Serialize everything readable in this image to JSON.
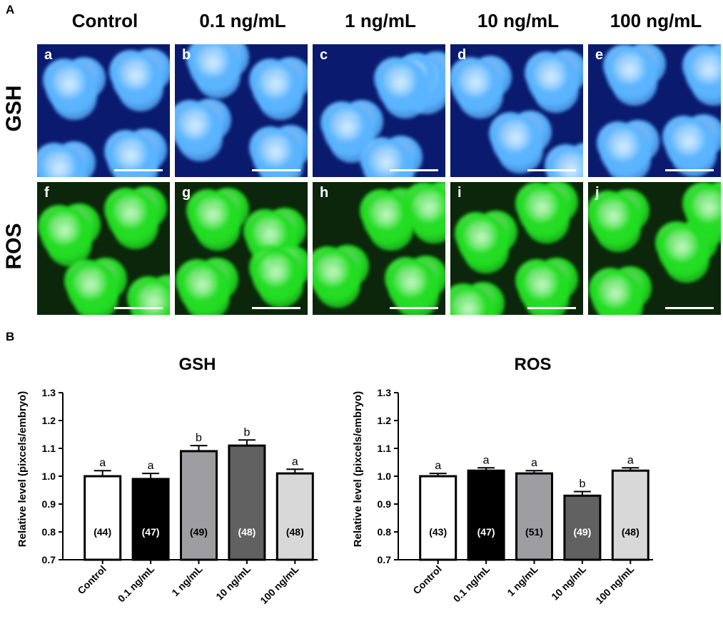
{
  "panel_a_label": "A",
  "panel_b_label": "B",
  "columns": [
    "Control",
    "0.1 ng/mL",
    "1 ng/mL",
    "10 ng/mL",
    "100 ng/mL"
  ],
  "rows": [
    {
      "label": "GSH",
      "tint": "#5ab4ff",
      "background": "#0a1a6e",
      "letters": [
        "a",
        "b",
        "c",
        "d",
        "e"
      ]
    },
    {
      "label": "ROS",
      "tint": "#22dd22",
      "background": "#0b260b",
      "letters": [
        "f",
        "g",
        "h",
        "i",
        "j"
      ]
    }
  ],
  "chart_data": [
    {
      "type": "bar",
      "title": "GSH",
      "ylabel": "Relative level (pixcels/embryo)",
      "xlabel": "",
      "categories": [
        "Control",
        "0.1 ng/mL",
        "1 ng/mL",
        "10 ng/mL",
        "100 ng/mL"
      ],
      "values": [
        1.0,
        0.99,
        1.09,
        1.11,
        1.01
      ],
      "errors": [
        0.02,
        0.02,
        0.02,
        0.02,
        0.015
      ],
      "significance": [
        "a",
        "a",
        "b",
        "b",
        "a"
      ],
      "n_labels": [
        "(44)",
        "(47)",
        "(49)",
        "(48)",
        "(48)"
      ],
      "bar_colors": [
        "#ffffff",
        "#000000",
        "#9e9ea2",
        "#616161",
        "#d8d8d8"
      ],
      "ylim": [
        0.7,
        1.3
      ],
      "yticks": [
        "0.7",
        "0.8",
        "0.9",
        "1.0",
        "1.1",
        "1.2",
        "1.3"
      ]
    },
    {
      "type": "bar",
      "title": "ROS",
      "ylabel": "Relative level (pixcels/embryo)",
      "xlabel": "",
      "categories": [
        "Control",
        "0.1 ng/mL",
        "1 ng/mL",
        "10 ng/mL",
        "100 ng/mL"
      ],
      "values": [
        1.0,
        1.02,
        1.01,
        0.93,
        1.02
      ],
      "errors": [
        0.01,
        0.01,
        0.01,
        0.015,
        0.01
      ],
      "significance": [
        "a",
        "a",
        "a",
        "b",
        "a"
      ],
      "n_labels": [
        "(43)",
        "(47)",
        "(51)",
        "(49)",
        "(48)"
      ],
      "bar_colors": [
        "#ffffff",
        "#000000",
        "#9e9ea2",
        "#616161",
        "#d8d8d8"
      ],
      "ylim": [
        0.7,
        1.3
      ],
      "yticks": [
        "0.7",
        "0.8",
        "0.9",
        "1.0",
        "1.1",
        "1.2",
        "1.3"
      ]
    }
  ]
}
